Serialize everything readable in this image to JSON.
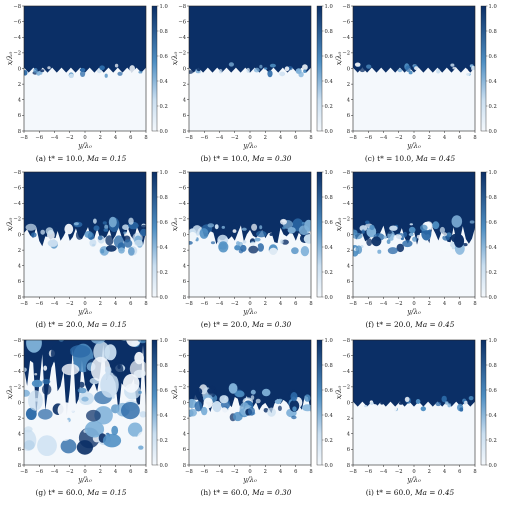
{
  "figure": {
    "x_label": "y/λ₀",
    "y_label": "x/λ₀",
    "x_ticks": [
      "−8",
      "−6",
      "−4",
      "−2",
      "0",
      "2",
      "4",
      "6",
      "8"
    ],
    "y_ticks": [
      "−8",
      "−6",
      "−4",
      "−2",
      "0",
      "2",
      "4",
      "6",
      "8"
    ],
    "colorbar_ticks": [
      "1.0",
      "0.8",
      "0.6",
      "0.4",
      "0.2",
      "0.0"
    ],
    "colors": {
      "dark": "#0b2f66",
      "mid": "#4f8fc3",
      "light": "#c9def0",
      "white": "#f4f8fc"
    }
  },
  "panels": [
    {
      "id": "a",
      "caption_tag": "(a)",
      "caption_t": "t* = 10.0,",
      "caption_ma": "Ma = 0.15",
      "t_star": 10.0,
      "mach": 0.15,
      "mix_extent": "narrow"
    },
    {
      "id": "b",
      "caption_tag": "(b)",
      "caption_t": "t* = 10.0,",
      "caption_ma": "Ma = 0.30",
      "t_star": 10.0,
      "mach": 0.3,
      "mix_extent": "narrow"
    },
    {
      "id": "c",
      "caption_tag": "(c)",
      "caption_t": "t* = 10.0,",
      "caption_ma": "Ma = 0.45",
      "t_star": 10.0,
      "mach": 0.45,
      "mix_extent": "narrow"
    },
    {
      "id": "d",
      "caption_tag": "(d)",
      "caption_t": "t* = 20.0,",
      "caption_ma": "Ma = 0.15",
      "t_star": 20.0,
      "mach": 0.15,
      "mix_extent": "moderate"
    },
    {
      "id": "e",
      "caption_tag": "(e)",
      "caption_t": "t* = 20.0,",
      "caption_ma": "Ma = 0.30",
      "t_star": 20.0,
      "mach": 0.3,
      "mix_extent": "moderate"
    },
    {
      "id": "f",
      "caption_tag": "(f)",
      "caption_t": "t* = 20.0,",
      "caption_ma": "Ma = 0.45",
      "t_star": 20.0,
      "mach": 0.45,
      "mix_extent": "moderate"
    },
    {
      "id": "g",
      "caption_tag": "(g)",
      "caption_t": "t* = 60.0,",
      "caption_ma": "Ma = 0.15",
      "t_star": 60.0,
      "mach": 0.15,
      "mix_extent": "wide"
    },
    {
      "id": "h",
      "caption_tag": "(h)",
      "caption_t": "t* = 60.0,",
      "caption_ma": "Ma = 0.30",
      "t_star": 60.0,
      "mach": 0.3,
      "mix_extent": "moderate"
    },
    {
      "id": "i",
      "caption_tag": "(i)",
      "caption_t": "t* = 60.0,",
      "caption_ma": "Ma = 0.45",
      "t_star": 60.0,
      "mach": 0.45,
      "mix_extent": "narrow"
    }
  ]
}
